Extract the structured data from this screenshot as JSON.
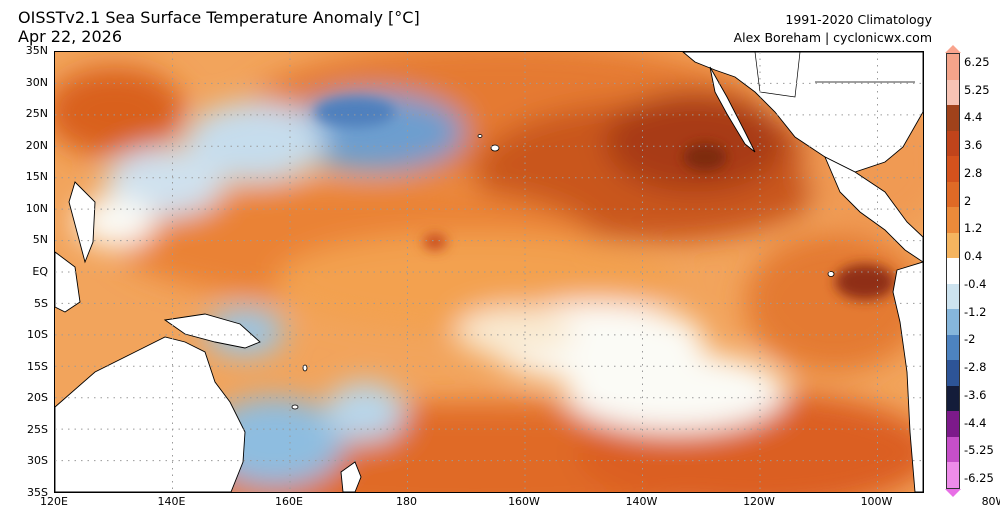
{
  "header": {
    "title": "OISSTv2.1 Sea Surface Temperature Anomaly [°C]",
    "date": "Apr 22, 2026",
    "climatology": "1991-2020 Climatology",
    "credit": "Alex Boreham | cyclonicwx.com"
  },
  "map": {
    "lat_labels": [
      "35N",
      "30N",
      "25N",
      "20N",
      "15N",
      "10N",
      "5N",
      "EQ",
      "5S",
      "10S",
      "15S",
      "20S",
      "25S",
      "30S",
      "35S"
    ],
    "lon_labels": [
      "120E",
      "140E",
      "160E",
      "180",
      "160W",
      "140W",
      "120W",
      "100W",
      "80W"
    ],
    "background": "#fbfbfb",
    "land_color": "#ffffff",
    "coastline_color": "#000000",
    "gridline_style": "dotted"
  },
  "colorbar": {
    "labels": [
      "6.25",
      "5.25",
      "4.4",
      "3.6",
      "2.8",
      "2",
      "1.2",
      "0.4",
      "-0.4",
      "-1.2",
      "-2",
      "-2.8",
      "-3.6",
      "-4.4",
      "-5.25",
      "-6.25"
    ],
    "colors": [
      "#f4a48a",
      "#f7c3b4",
      "#a0421b",
      "#c0441b",
      "#d4521d",
      "#e06a26",
      "#ec8a3a",
      "#f5b45f",
      "#ffffff",
      "#cde3ef",
      "#86b6db",
      "#4d83c0",
      "#2d5497",
      "#141c3a",
      "#7c1a8a",
      "#c64fc8",
      "#ee8ce9"
    ]
  }
}
